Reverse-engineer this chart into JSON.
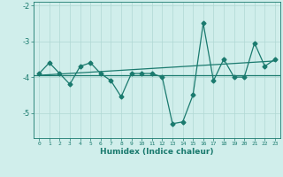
{
  "x": [
    0,
    1,
    2,
    3,
    4,
    5,
    6,
    7,
    8,
    9,
    10,
    11,
    12,
    13,
    14,
    15,
    16,
    17,
    18,
    19,
    20,
    21,
    22,
    23
  ],
  "y_main": [
    -3.9,
    -3.6,
    -3.9,
    -4.2,
    -3.7,
    -3.6,
    -3.9,
    -4.1,
    -4.55,
    -3.9,
    -3.9,
    -3.9,
    -4.0,
    -5.3,
    -5.25,
    -4.5,
    -2.5,
    -4.1,
    -3.5,
    -4.0,
    -4.0,
    -3.05,
    -3.7,
    -3.5
  ],
  "trend_x": [
    0,
    23
  ],
  "trend_y": [
    -3.95,
    -3.55
  ],
  "mean_y": -3.95,
  "ylim": [
    -5.7,
    -1.9
  ],
  "xlim": [
    -0.5,
    23.5
  ],
  "yticks": [
    -5,
    -4,
    -3,
    -2
  ],
  "xticks": [
    0,
    1,
    2,
    3,
    4,
    5,
    6,
    7,
    8,
    9,
    10,
    11,
    12,
    13,
    14,
    15,
    16,
    17,
    18,
    19,
    20,
    21,
    22,
    23
  ],
  "line_color": "#1a7a6e",
  "bg_color": "#d0eeeb",
  "grid_color": "#b0d8d4",
  "xlabel": "Humidex (Indice chaleur)",
  "marker": "D",
  "marker_size": 2.5,
  "line_width": 0.9
}
